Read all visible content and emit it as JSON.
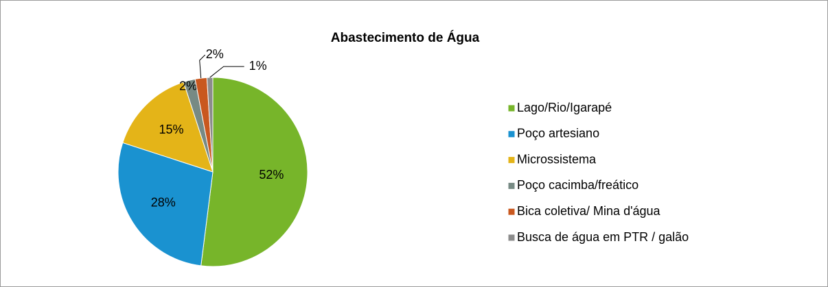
{
  "chart_data": {
    "type": "pie",
    "title": "Abastecimento de Água",
    "categories": [
      "Lago/Rio/Igarapé",
      "Poço artesiano",
      "Microssistema",
      "Poço cacimba/freático",
      "Bica coletiva/ Mina d'água",
      "Busca de água em PTR / galão"
    ],
    "values": [
      52,
      28,
      15,
      2,
      2,
      1
    ],
    "value_labels": [
      "52%",
      "28%",
      "15%",
      "2%",
      "2%",
      "1%"
    ],
    "colors": [
      "#77b52a",
      "#1a92d0",
      "#e4b418",
      "#778a84",
      "#c9581f",
      "#8c8c8c"
    ],
    "legend": "right"
  }
}
